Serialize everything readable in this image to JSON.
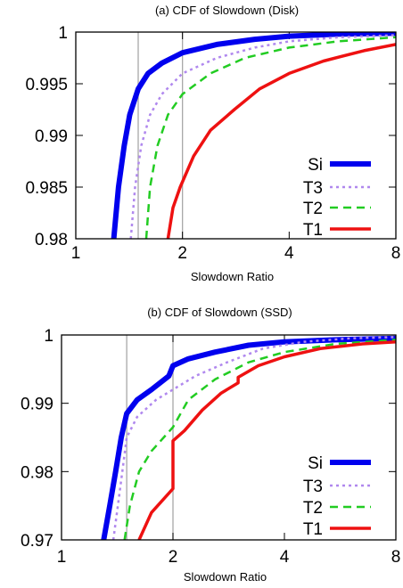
{
  "chart_data": [
    {
      "type": "line",
      "title": "(a) CDF of Slowdown (Disk)",
      "xlabel": "Slowdown Ratio",
      "ylabel": "",
      "xscale": "log2",
      "xlim": [
        1,
        8
      ],
      "ylim": [
        0.98,
        1
      ],
      "xticks": [
        {
          "v": 1,
          "label": "1"
        },
        {
          "v": 2,
          "label": "2"
        },
        {
          "v": 4,
          "label": "4"
        },
        {
          "v": 8,
          "label": "8"
        }
      ],
      "yticks": [
        {
          "v": 0.98,
          "label": "0.98"
        },
        {
          "v": 0.985,
          "label": "0.985"
        },
        {
          "v": 0.99,
          "label": "0.99"
        },
        {
          "v": 0.995,
          "label": "0.995"
        },
        {
          "v": 1,
          "label": "1"
        }
      ],
      "vlines": [
        1.5,
        2
      ],
      "legend": "bottom-right",
      "series": [
        {
          "name": "Si",
          "color": "#0000ee",
          "width": 6,
          "dash": "",
          "points": [
            [
              1.28,
              0.98
            ],
            [
              1.32,
              0.985
            ],
            [
              1.37,
              0.989
            ],
            [
              1.42,
              0.992
            ],
            [
              1.5,
              0.9945
            ],
            [
              1.6,
              0.996
            ],
            [
              1.75,
              0.997
            ],
            [
              2,
              0.998
            ],
            [
              2.5,
              0.9988
            ],
            [
              3.2,
              0.9993
            ],
            [
              4,
              0.9996
            ],
            [
              5.5,
              0.9998
            ],
            [
              8,
              0.9999
            ]
          ]
        },
        {
          "name": "T3",
          "color": "#b088ee",
          "width": 2.5,
          "dash": "3,4",
          "points": [
            [
              1.43,
              0.98
            ],
            [
              1.47,
              0.985
            ],
            [
              1.53,
              0.989
            ],
            [
              1.62,
              0.992
            ],
            [
              1.75,
              0.994
            ],
            [
              2,
              0.996
            ],
            [
              2.5,
              0.9975
            ],
            [
              3.2,
              0.9985
            ],
            [
              4,
              0.9991
            ],
            [
              5.5,
              0.9995
            ],
            [
              8,
              0.9997
            ]
          ]
        },
        {
          "name": "T2",
          "color": "#22cc22",
          "width": 2.5,
          "dash": "9,6",
          "points": [
            [
              1.58,
              0.98
            ],
            [
              1.62,
              0.985
            ],
            [
              1.7,
              0.989
            ],
            [
              1.82,
              0.992
            ],
            [
              2,
              0.994
            ],
            [
              2.4,
              0.996
            ],
            [
              3,
              0.9975
            ],
            [
              4,
              0.9985
            ],
            [
              5.5,
              0.9991
            ],
            [
              8,
              0.9995
            ]
          ]
        },
        {
          "name": "T1",
          "color": "#ee1111",
          "width": 3.5,
          "dash": "",
          "points": [
            [
              1.82,
              0.98
            ],
            [
              1.88,
              0.983
            ],
            [
              1.97,
              0.985
            ],
            [
              2.15,
              0.988
            ],
            [
              2.4,
              0.9905
            ],
            [
              2.8,
              0.9925
            ],
            [
              3.3,
              0.9945
            ],
            [
              4,
              0.996
            ],
            [
              5,
              0.9972
            ],
            [
              6.5,
              0.9982
            ],
            [
              8,
              0.9988
            ]
          ]
        }
      ]
    },
    {
      "type": "line",
      "title": "(b) CDF of Slowdown (SSD)",
      "xlabel": "Slowdown Ratio",
      "ylabel": "",
      "xscale": "log2",
      "xlim": [
        1,
        8
      ],
      "ylim": [
        0.97,
        1
      ],
      "xticks": [
        {
          "v": 1,
          "label": "1"
        },
        {
          "v": 2,
          "label": "2"
        },
        {
          "v": 4,
          "label": "4"
        },
        {
          "v": 8,
          "label": "8"
        }
      ],
      "yticks": [
        {
          "v": 0.97,
          "label": "0.97"
        },
        {
          "v": 0.98,
          "label": "0.98"
        },
        {
          "v": 0.99,
          "label": "0.99"
        },
        {
          "v": 1,
          "label": "1"
        }
      ],
      "vlines": [
        1.5,
        2
      ],
      "legend": "bottom-right",
      "series": [
        {
          "name": "Si",
          "color": "#0000ee",
          "width": 6,
          "dash": "",
          "points": [
            [
              1.3,
              0.97
            ],
            [
              1.35,
              0.975
            ],
            [
              1.4,
              0.98
            ],
            [
              1.45,
              0.985
            ],
            [
              1.5,
              0.9885
            ],
            [
              1.6,
              0.9905
            ],
            [
              1.75,
              0.992
            ],
            [
              1.95,
              0.994
            ],
            [
              2,
              0.9955
            ],
            [
              2.2,
              0.9965
            ],
            [
              2.6,
              0.9975
            ],
            [
              3.2,
              0.9985
            ],
            [
              4,
              0.999
            ],
            [
              5.5,
              0.9993
            ],
            [
              8,
              0.9995
            ]
          ]
        },
        {
          "name": "T3",
          "color": "#b088ee",
          "width": 2.5,
          "dash": "3,4",
          "points": [
            [
              1.38,
              0.97
            ],
            [
              1.42,
              0.975
            ],
            [
              1.46,
              0.98
            ],
            [
              1.5,
              0.985
            ],
            [
              1.6,
              0.988
            ],
            [
              1.8,
              0.9905
            ],
            [
              2,
              0.992
            ],
            [
              2.3,
              0.994
            ],
            [
              2.8,
              0.996
            ],
            [
              3.5,
              0.998
            ],
            [
              4.5,
              0.999
            ],
            [
              6,
              0.9995
            ],
            [
              8,
              0.9997
            ]
          ]
        },
        {
          "name": "T2",
          "color": "#22cc22",
          "width": 2.5,
          "dash": "9,6",
          "points": [
            [
              1.48,
              0.97
            ],
            [
              1.53,
              0.975
            ],
            [
              1.62,
              0.98
            ],
            [
              1.75,
              0.983
            ],
            [
              2,
              0.9865
            ],
            [
              2.2,
              0.9905
            ],
            [
              2.6,
              0.9935
            ],
            [
              3.2,
              0.996
            ],
            [
              4,
              0.9975
            ],
            [
              5.5,
              0.9987
            ],
            [
              8,
              0.9993
            ]
          ]
        },
        {
          "name": "T1",
          "color": "#ee1111",
          "width": 3.5,
          "dash": "",
          "points": [
            [
              1.62,
              0.97
            ],
            [
              1.75,
              0.974
            ],
            [
              2,
              0.9775
            ],
            [
              2,
              0.9845
            ],
            [
              2.15,
              0.986
            ],
            [
              2.4,
              0.989
            ],
            [
              2.7,
              0.9915
            ],
            [
              3,
              0.993
            ],
            [
              3,
              0.9938
            ],
            [
              3.4,
              0.9955
            ],
            [
              4,
              0.9968
            ],
            [
              5,
              0.998
            ],
            [
              6.5,
              0.9987
            ],
            [
              8,
              0.999
            ]
          ]
        }
      ]
    }
  ]
}
